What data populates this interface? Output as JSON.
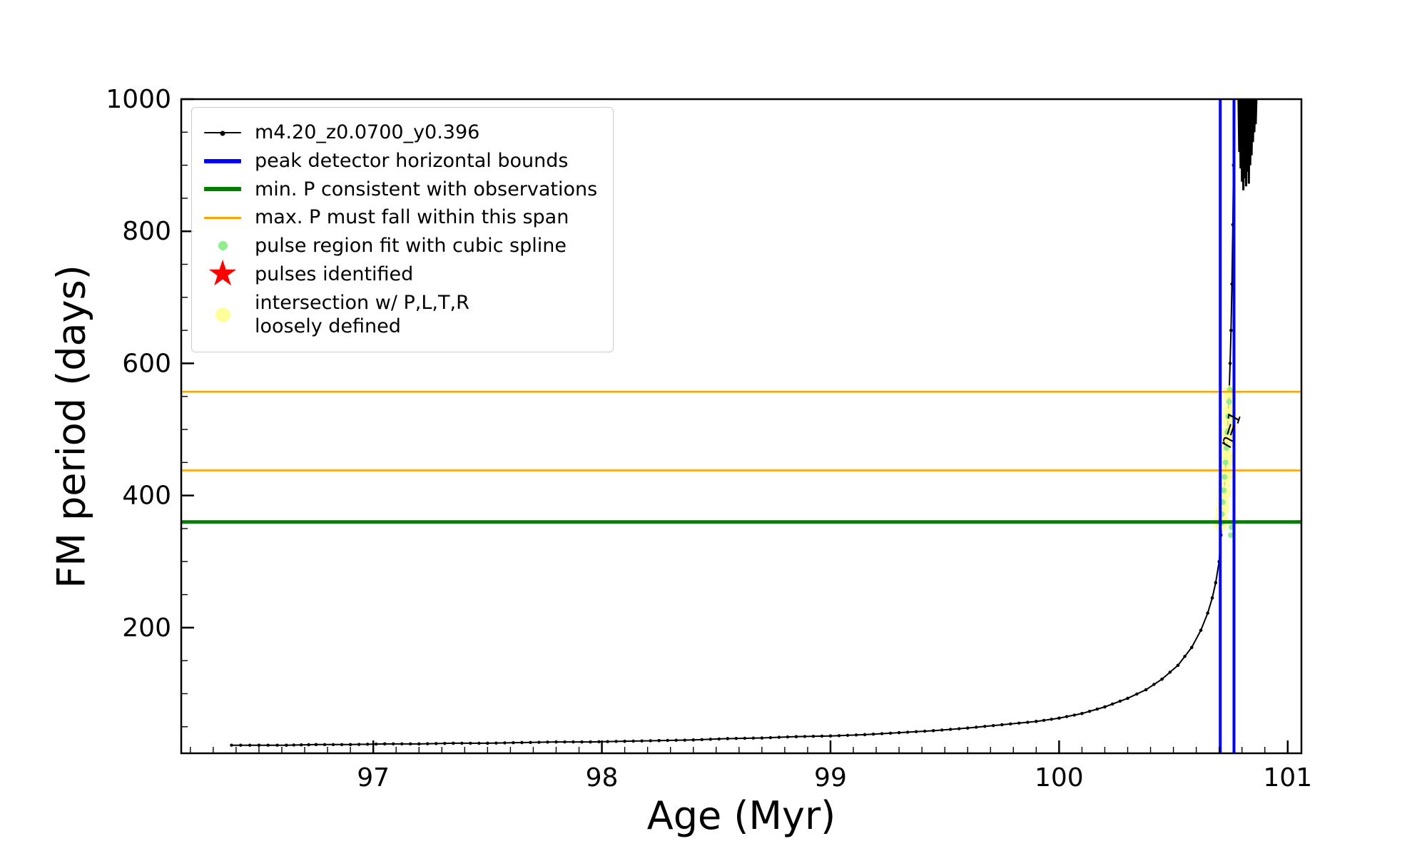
{
  "figure": {
    "background": "#ffffff"
  },
  "chart_data": {
    "type": "line",
    "title": "",
    "xlabel": "Age (Myr)",
    "ylabel": "FM period (days)",
    "xlim": [
      96.16,
      101.06
    ],
    "ylim": [
      9.8,
      1000
    ],
    "x_ticks": [
      97,
      98,
      99,
      100,
      101
    ],
    "x_minor_step": 0.1,
    "y_ticks": [
      200,
      400,
      600,
      800,
      1000
    ],
    "y_minor_step": 50,
    "grid": false,
    "legend_position": "upper left",
    "series": [
      {
        "name": "m4.20_z0.0700_y0.396",
        "type": "line+markers",
        "color": "#000000",
        "width": 2,
        "points": [
          [
            96.38,
            22
          ],
          [
            96.5,
            22
          ],
          [
            96.62,
            22
          ],
          [
            96.75,
            23
          ],
          [
            96.9,
            23
          ],
          [
            97.05,
            24
          ],
          [
            97.2,
            24
          ],
          [
            97.35,
            25
          ],
          [
            97.5,
            25
          ],
          [
            97.65,
            26
          ],
          [
            97.8,
            27
          ],
          [
            97.95,
            27
          ],
          [
            98.1,
            28
          ],
          [
            98.25,
            29
          ],
          [
            98.4,
            30
          ],
          [
            98.55,
            32
          ],
          [
            98.7,
            33
          ],
          [
            98.85,
            35
          ],
          [
            99.0,
            36
          ],
          [
            99.15,
            38
          ],
          [
            99.3,
            41
          ],
          [
            99.45,
            44
          ],
          [
            99.6,
            48
          ],
          [
            99.75,
            53
          ],
          [
            99.9,
            58
          ],
          [
            100.0,
            63
          ],
          [
            100.1,
            70
          ],
          [
            100.2,
            80
          ],
          [
            100.3,
            93
          ],
          [
            100.38,
            106
          ],
          [
            100.45,
            122
          ],
          [
            100.52,
            143
          ],
          [
            100.58,
            170
          ],
          [
            100.62,
            196
          ],
          [
            100.65,
            222
          ],
          [
            100.67,
            245
          ],
          [
            100.685,
            268
          ],
          [
            100.7,
            300
          ],
          [
            100.708,
            340
          ],
          [
            100.715,
            372
          ],
          [
            100.722,
            408
          ],
          [
            100.73,
            452
          ],
          [
            100.737,
            500
          ],
          [
            100.743,
            548
          ],
          [
            100.748,
            600
          ],
          [
            100.752,
            650
          ],
          [
            100.756,
            720
          ],
          [
            100.76,
            810
          ],
          [
            100.763,
            900
          ],
          [
            100.766,
            1000
          ]
        ]
      },
      {
        "name": "pulse-oscillations",
        "type": "line",
        "color": "#000000",
        "width": 3,
        "points": [
          [
            100.785,
            1000
          ],
          [
            100.788,
            920
          ],
          [
            100.791,
            1000
          ],
          [
            100.794,
            895
          ],
          [
            100.797,
            1000
          ],
          [
            100.8,
            875
          ],
          [
            100.803,
            1000
          ],
          [
            100.806,
            862
          ],
          [
            100.809,
            1000
          ],
          [
            100.812,
            880
          ],
          [
            100.815,
            1000
          ],
          [
            100.818,
            868
          ],
          [
            100.821,
            1000
          ],
          [
            100.824,
            890
          ],
          [
            100.827,
            1000
          ],
          [
            100.83,
            872
          ],
          [
            100.833,
            1000
          ],
          [
            100.836,
            900
          ],
          [
            100.839,
            1000
          ],
          [
            100.842,
            915
          ],
          [
            100.845,
            1000
          ],
          [
            100.848,
            935
          ],
          [
            100.851,
            1000
          ],
          [
            100.854,
            950
          ],
          [
            100.857,
            1000
          ],
          [
            100.86,
            962
          ],
          [
            100.863,
            1000
          ]
        ]
      },
      {
        "name": "pulse region fit with cubic spline",
        "type": "scatter",
        "color": "#90ee90",
        "radius": 4,
        "opacity": 1,
        "points": [
          [
            100.708,
            358
          ],
          [
            100.712,
            372
          ],
          [
            100.716,
            390
          ],
          [
            100.72,
            408
          ],
          [
            100.724,
            428
          ],
          [
            100.728,
            450
          ],
          [
            100.732,
            472
          ],
          [
            100.736,
            496
          ],
          [
            100.74,
            520
          ],
          [
            100.744,
            542
          ],
          [
            100.747,
            560
          ],
          [
            100.751,
            340
          ],
          [
            100.754,
            352
          ]
        ]
      },
      {
        "name": "intersection w/ P,L,T,R loosely defined",
        "type": "scatter",
        "color": "#ffff99",
        "radius": 9,
        "opacity": 0.85,
        "points": [
          [
            100.707,
            356
          ],
          [
            100.71,
            365
          ],
          [
            100.713,
            378
          ],
          [
            100.716,
            392
          ],
          [
            100.719,
            405
          ],
          [
            100.722,
            418
          ],
          [
            100.725,
            432
          ],
          [
            100.728,
            447
          ],
          [
            100.731,
            462
          ],
          [
            100.734,
            478
          ],
          [
            100.737,
            495
          ],
          [
            100.74,
            512
          ],
          [
            100.743,
            530
          ],
          [
            100.746,
            548
          ],
          [
            100.748,
            557
          ],
          [
            100.712,
            360
          ],
          [
            100.718,
            382
          ],
          [
            100.724,
            404
          ],
          [
            100.73,
            430
          ],
          [
            100.736,
            458
          ],
          [
            100.742,
            490
          ],
          [
            100.747,
            522
          ]
        ]
      }
    ],
    "hlines": [
      {
        "name": "min. P consistent with observations",
        "y": 360,
        "color": "#008000",
        "width": 5
      },
      {
        "name": "max. P span upper bound",
        "y": 557,
        "color": "#ffa500",
        "width": 2.6
      },
      {
        "name": "max. P span lower bound",
        "y": 438,
        "color": "#ffa500",
        "width": 2.6
      }
    ],
    "vlines": [
      {
        "name": "peak detector left bound",
        "x": 100.705,
        "color": "#0000ff",
        "width": 4
      },
      {
        "name": "peak detector right bound",
        "x": 100.765,
        "color": "#0000ff",
        "width": 4
      }
    ],
    "annotations": [
      {
        "text": "n=1",
        "x": 100.773,
        "y": 497,
        "rotation": -72
      }
    ]
  },
  "legend": {
    "entries": [
      {
        "label": "m4.20_z0.0700_y0.396",
        "marker": "line-dot",
        "color": "#000000"
      },
      {
        "label": "peak detector horizontal bounds",
        "marker": "thick-line",
        "color": "#0000ff"
      },
      {
        "label": "min. P consistent with observations",
        "marker": "thick-line",
        "color": "#008000"
      },
      {
        "label": "max. P must fall within this span",
        "marker": "line",
        "color": "#ffa500"
      },
      {
        "label": "pulse region fit with cubic spline",
        "marker": "dot",
        "color": "#90ee90"
      },
      {
        "label": "pulses identified",
        "marker": "star",
        "color": "#ff0000"
      },
      {
        "label": "intersection w/ P,L,T,R\nloosely defined",
        "marker": "dot-large",
        "color": "#ffff99"
      }
    ]
  }
}
